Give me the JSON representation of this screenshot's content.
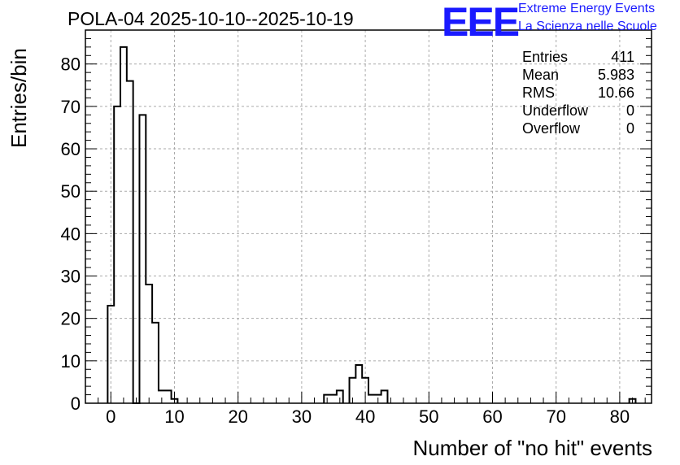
{
  "chart_data": {
    "type": "bar",
    "style": "step-histogram",
    "title": "POLA-04 2025-10-10--2025-10-19",
    "xlabel": "Number of \"no hit\" events",
    "ylabel": "Entries/bin",
    "xlim": [
      -4,
      85
    ],
    "ylim": [
      0,
      88
    ],
    "xticks": [
      0,
      10,
      20,
      30,
      40,
      50,
      60,
      70,
      80
    ],
    "yticks": [
      0,
      10,
      20,
      30,
      40,
      50,
      60,
      70,
      80
    ],
    "grid": true,
    "bins": [
      {
        "x": -0.5,
        "width": 1,
        "value": 23
      },
      {
        "x": 0.5,
        "width": 1,
        "value": 70
      },
      {
        "x": 1.5,
        "width": 1,
        "value": 84
      },
      {
        "x": 2.5,
        "width": 1,
        "value": 76
      },
      {
        "x": 3.5,
        "width": 1,
        "value": 0
      },
      {
        "x": 4.5,
        "width": 1,
        "value": 68
      },
      {
        "x": 5.5,
        "width": 1,
        "value": 28
      },
      {
        "x": 6.5,
        "width": 1,
        "value": 19
      },
      {
        "x": 7.5,
        "width": 1,
        "value": 3
      },
      {
        "x": 8.5,
        "width": 1,
        "value": 3
      },
      {
        "x": 9.5,
        "width": 1,
        "value": 1
      },
      {
        "x": 33.5,
        "width": 1,
        "value": 2
      },
      {
        "x": 34.5,
        "width": 1,
        "value": 2
      },
      {
        "x": 35.5,
        "width": 1,
        "value": 3
      },
      {
        "x": 37.5,
        "width": 1,
        "value": 6
      },
      {
        "x": 38.5,
        "width": 1,
        "value": 9
      },
      {
        "x": 39.5,
        "width": 1,
        "value": 6
      },
      {
        "x": 40.5,
        "width": 1,
        "value": 2
      },
      {
        "x": 41.5,
        "width": 1,
        "value": 2
      },
      {
        "x": 42.5,
        "width": 1,
        "value": 3
      },
      {
        "x": 81.5,
        "width": 1,
        "value": 1
      }
    ]
  },
  "stats": [
    {
      "label": "Entries",
      "value": "411"
    },
    {
      "label": "Mean",
      "value": "5.983"
    },
    {
      "label": "RMS",
      "value": "10.66"
    },
    {
      "label": "Underflow",
      "value": "0"
    },
    {
      "label": "Overflow",
      "value": "0"
    }
  ],
  "logo": {
    "mark": "EEE",
    "line1": "Extreme Energy Events",
    "line2": "La Scienza nelle Scuole",
    "color": "#1a1aff"
  }
}
